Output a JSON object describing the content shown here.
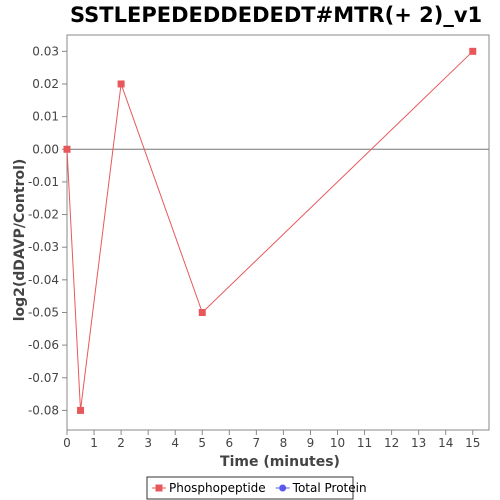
{
  "chart_data": {
    "type": "line",
    "title": "SSTLEPEDEDDEDEDT#MTR(+ 2)_v1",
    "xlabel": "Time (minutes)",
    "ylabel": "log2(dDAVP/Control)",
    "xlim": [
      0,
      15.6
    ],
    "ylim": [
      -0.086,
      0.035
    ],
    "x_ticks": [
      0,
      1,
      2,
      3,
      4,
      5,
      6,
      7,
      8,
      9,
      10,
      11,
      12,
      13,
      14,
      15
    ],
    "y_ticks": [
      0.03,
      0.02,
      0.01,
      0.0,
      -0.01,
      -0.02,
      -0.03,
      -0.04,
      -0.05,
      -0.06,
      -0.07,
      -0.08
    ],
    "y_tick_labels": [
      "0.03",
      "0.02",
      "0.01",
      "0.00",
      "-0.01",
      "-0.02",
      "-0.03",
      "-0.04",
      "-0.05",
      "-0.06",
      "-0.07",
      "-0.08"
    ],
    "reference_line_y": 0,
    "grid": false,
    "legend_position": "bottom",
    "series": [
      {
        "name": "Phosphopeptide",
        "color": "#e8585a",
        "marker": "square",
        "x": [
          0,
          0.5,
          2,
          5,
          15
        ],
        "y": [
          0.0,
          -0.08,
          0.02,
          -0.05,
          0.03
        ]
      },
      {
        "name": "Total Protein",
        "color": "#5a5ae8",
        "marker": "circle",
        "x": [],
        "y": []
      }
    ]
  }
}
